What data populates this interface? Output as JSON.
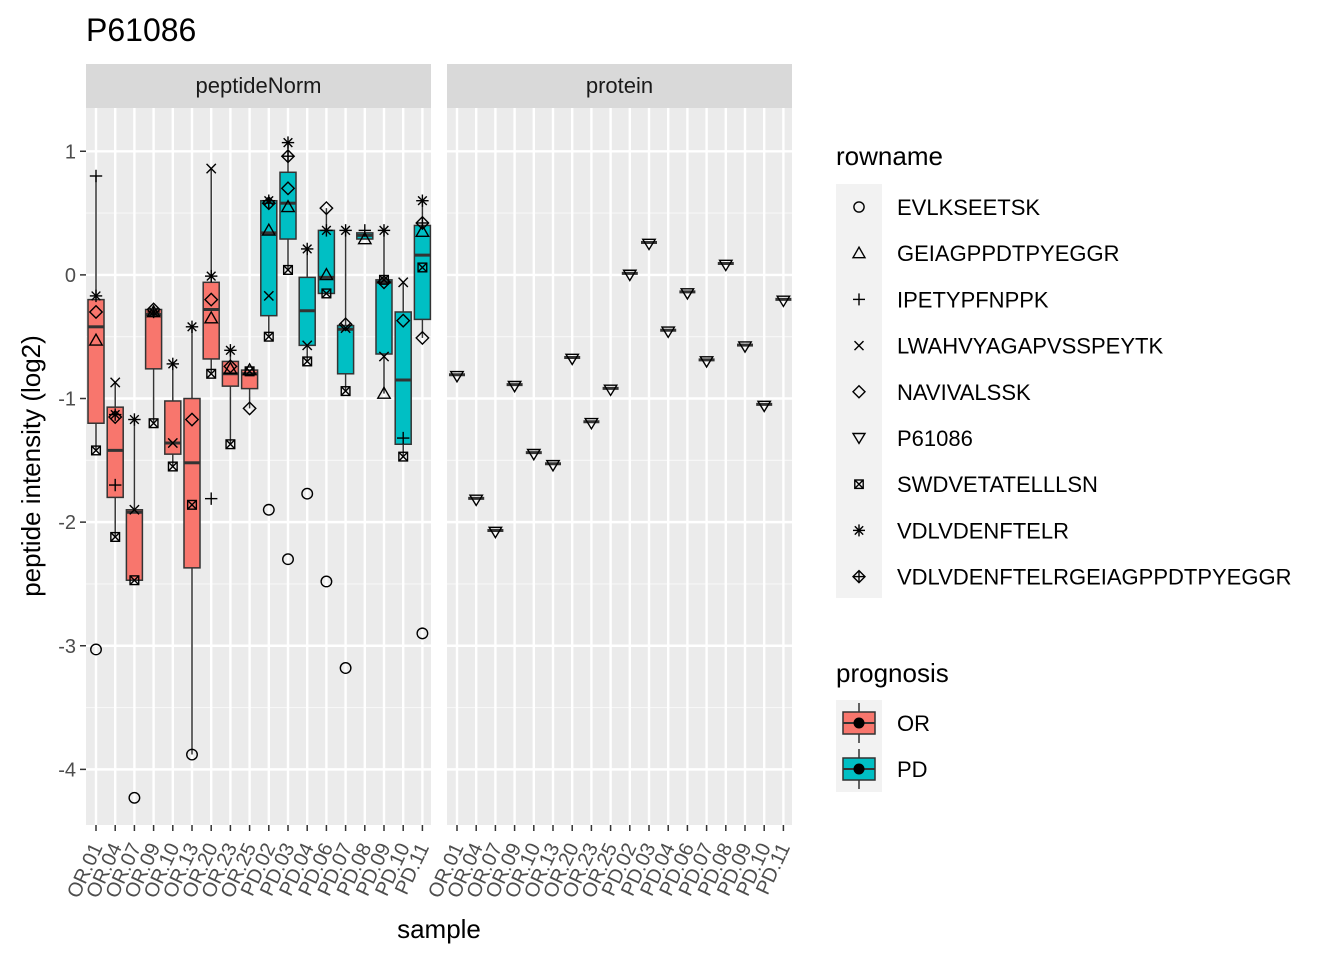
{
  "chart_data": {
    "type": "box",
    "title": "P61086",
    "xlabel": "sample",
    "ylabel": "peptide intensity (log2)",
    "facets": [
      "peptideNorm",
      "protein"
    ],
    "samples": [
      "OR.01",
      "OR.04",
      "OR.07",
      "OR.09",
      "OR.10",
      "OR.13",
      "OR.20",
      "OR.23",
      "OR.25",
      "PD.02",
      "PD.03",
      "PD.04",
      "PD.06",
      "PD.07",
      "PD.08",
      "PD.09",
      "PD.10",
      "PD.11"
    ],
    "prognosis": [
      "OR",
      "OR",
      "OR",
      "OR",
      "OR",
      "OR",
      "OR",
      "OR",
      "OR",
      "PD",
      "PD",
      "PD",
      "PD",
      "PD",
      "PD",
      "PD",
      "PD",
      "PD"
    ],
    "ylim": [
      -4.45,
      1.35
    ],
    "yticks": [
      1,
      0,
      -1,
      -2,
      -3,
      -4
    ],
    "legends": {
      "rowname": {
        "title": "rowname",
        "items": [
          {
            "label": "EVLKSEETSK",
            "shape": "circle"
          },
          {
            "label": "GEIAGPPDTPYEGGR",
            "shape": "triangle"
          },
          {
            "label": "IPETYPFNPPK",
            "shape": "plus"
          },
          {
            "label": "LWAHVYAGAPVSSPEYTK",
            "shape": "cross"
          },
          {
            "label": "NAVIVALSSK",
            "shape": "diamond"
          },
          {
            "label": "P61086",
            "shape": "triangle-down"
          },
          {
            "label": "SWDVETATELLLSN",
            "shape": "square-cross"
          },
          {
            "label": "VDLVDENFTELR",
            "shape": "asterisk"
          },
          {
            "label": "VDLVDENFTELRGEIAGPPDTPYEGGR",
            "shape": "diamond-plus"
          }
        ]
      },
      "prognosis": {
        "title": "prognosis",
        "items": [
          {
            "label": "OR",
            "color": "#F8766D"
          },
          {
            "label": "PD",
            "color": "#00BFC4"
          }
        ]
      }
    },
    "peptideNorm": {
      "boxes": [
        {
          "q1": -1.2,
          "med": -0.42,
          "q3": -0.2,
          "lo": -1.42,
          "hi": 0.8
        },
        {
          "q1": -1.8,
          "med": -1.42,
          "q3": -1.07,
          "lo": -2.12,
          "hi": -0.87
        },
        {
          "q1": -2.47,
          "med": -1.92,
          "q3": -1.9,
          "lo": -2.47,
          "hi": -1.17
        },
        {
          "q1": -0.76,
          "med": -0.32,
          "q3": -0.28,
          "lo": -1.2,
          "hi": -0.28
        },
        {
          "q1": -1.45,
          "med": -1.36,
          "q3": -1.02,
          "lo": -1.55,
          "hi": -0.72
        },
        {
          "q1": -2.37,
          "med": -1.52,
          "q3": -1.0,
          "lo": -3.88,
          "hi": -0.42
        },
        {
          "q1": -0.68,
          "med": -0.28,
          "q3": -0.06,
          "lo": -0.8,
          "hi": 0.86
        },
        {
          "q1": -0.9,
          "med": -0.8,
          "q3": -0.7,
          "lo": -1.37,
          "hi": -0.61
        },
        {
          "q1": -0.92,
          "med": -0.8,
          "q3": -0.77,
          "lo": -1.08,
          "hi": -0.77
        },
        {
          "q1": -0.33,
          "med": 0.34,
          "q3": 0.6,
          "lo": -0.5,
          "hi": 0.6
        },
        {
          "q1": 0.29,
          "med": 0.58,
          "q3": 0.83,
          "lo": 0.04,
          "hi": 1.07
        },
        {
          "q1": -0.57,
          "med": -0.29,
          "q3": -0.02,
          "lo": -0.7,
          "hi": 0.21
        },
        {
          "q1": -0.15,
          "med": -0.02,
          "q3": 0.36,
          "lo": -0.15,
          "hi": 0.54
        },
        {
          "q1": -0.8,
          "med": -0.44,
          "q3": -0.41,
          "lo": -0.94,
          "hi": 0.36
        },
        {
          "q1": 0.29,
          "med": 0.32,
          "q3": 0.34,
          "lo": 0.29,
          "hi": 0.36
        },
        {
          "q1": -0.64,
          "med": -0.06,
          "q3": -0.04,
          "lo": -0.96,
          "hi": 0.36
        },
        {
          "q1": -1.37,
          "med": -0.85,
          "q3": -0.3,
          "lo": -1.47,
          "hi": -0.06
        },
        {
          "q1": -0.36,
          "med": 0.16,
          "q3": 0.4,
          "lo": -0.51,
          "hi": 0.6
        }
      ],
      "points": [
        {
          "x": "OR.01",
          "y": -3.03,
          "shape": "circle"
        },
        {
          "x": "OR.01",
          "y": -0.53,
          "shape": "triangle"
        },
        {
          "x": "OR.01",
          "y": 0.8,
          "shape": "plus"
        },
        {
          "x": "OR.01",
          "y": -0.3,
          "shape": "diamond"
        },
        {
          "x": "OR.01",
          "y": -1.42,
          "shape": "square-cross"
        },
        {
          "x": "OR.01",
          "y": -0.17,
          "shape": "asterisk"
        },
        {
          "x": "OR.04",
          "y": -1.7,
          "shape": "plus"
        },
        {
          "x": "OR.04",
          "y": -0.87,
          "shape": "cross"
        },
        {
          "x": "OR.04",
          "y": -1.15,
          "shape": "diamond"
        },
        {
          "x": "OR.04",
          "y": -2.12,
          "shape": "square-cross"
        },
        {
          "x": "OR.04",
          "y": -1.13,
          "shape": "asterisk"
        },
        {
          "x": "OR.07",
          "y": -4.23,
          "shape": "circle"
        },
        {
          "x": "OR.07",
          "y": -1.9,
          "shape": "cross"
        },
        {
          "x": "OR.07",
          "y": -2.47,
          "shape": "square-cross"
        },
        {
          "x": "OR.07",
          "y": -1.17,
          "shape": "asterisk"
        },
        {
          "x": "OR.09",
          "y": -0.3,
          "shape": "triangle"
        },
        {
          "x": "OR.09",
          "y": -0.28,
          "shape": "diamond"
        },
        {
          "x": "OR.09",
          "y": -1.2,
          "shape": "square-cross"
        },
        {
          "x": "OR.09",
          "y": -0.3,
          "shape": "asterisk"
        },
        {
          "x": "OR.10",
          "y": -1.36,
          "shape": "cross"
        },
        {
          "x": "OR.10",
          "y": -1.55,
          "shape": "square-cross"
        },
        {
          "x": "OR.10",
          "y": -0.72,
          "shape": "asterisk"
        },
        {
          "x": "OR.13",
          "y": -3.88,
          "shape": "circle"
        },
        {
          "x": "OR.13",
          "y": -1.17,
          "shape": "diamond"
        },
        {
          "x": "OR.13",
          "y": -1.86,
          "shape": "square-cross"
        },
        {
          "x": "OR.13",
          "y": -0.42,
          "shape": "asterisk"
        },
        {
          "x": "OR.20",
          "y": -0.35,
          "shape": "triangle"
        },
        {
          "x": "OR.20",
          "y": -1.81,
          "shape": "plus"
        },
        {
          "x": "OR.20",
          "y": 0.86,
          "shape": "cross"
        },
        {
          "x": "OR.20",
          "y": -0.2,
          "shape": "diamond"
        },
        {
          "x": "OR.20",
          "y": -0.8,
          "shape": "square-cross"
        },
        {
          "x": "OR.20",
          "y": -0.01,
          "shape": "asterisk"
        },
        {
          "x": "OR.23",
          "y": -0.76,
          "shape": "triangle"
        },
        {
          "x": "OR.23",
          "y": -0.74,
          "shape": "diamond"
        },
        {
          "x": "OR.23",
          "y": -1.37,
          "shape": "square-cross"
        },
        {
          "x": "OR.23",
          "y": -0.61,
          "shape": "asterisk"
        },
        {
          "x": "OR.25",
          "y": -0.77,
          "shape": "triangle"
        },
        {
          "x": "OR.25",
          "y": -1.08,
          "shape": "diamond"
        },
        {
          "x": "OR.25",
          "y": -0.78,
          "shape": "square-cross"
        },
        {
          "x": "PD.02",
          "y": -1.9,
          "shape": "circle"
        },
        {
          "x": "PD.02",
          "y": 0.36,
          "shape": "triangle"
        },
        {
          "x": "PD.02",
          "y": -0.17,
          "shape": "cross"
        },
        {
          "x": "PD.02",
          "y": -0.5,
          "shape": "square-cross"
        },
        {
          "x": "PD.02",
          "y": 0.6,
          "shape": "asterisk"
        },
        {
          "x": "PD.02",
          "y": 0.58,
          "shape": "diamond-plus"
        },
        {
          "x": "PD.03",
          "y": -2.3,
          "shape": "circle"
        },
        {
          "x": "PD.03",
          "y": 0.55,
          "shape": "triangle"
        },
        {
          "x": "PD.03",
          "y": 0.7,
          "shape": "diamond"
        },
        {
          "x": "PD.03",
          "y": 0.04,
          "shape": "square-cross"
        },
        {
          "x": "PD.03",
          "y": 1.07,
          "shape": "asterisk"
        },
        {
          "x": "PD.03",
          "y": 0.96,
          "shape": "diamond-plus"
        },
        {
          "x": "PD.04",
          "y": -1.77,
          "shape": "circle"
        },
        {
          "x": "PD.04",
          "y": -0.57,
          "shape": "cross"
        },
        {
          "x": "PD.04",
          "y": -0.7,
          "shape": "square-cross"
        },
        {
          "x": "PD.04",
          "y": 0.21,
          "shape": "asterisk"
        },
        {
          "x": "PD.06",
          "y": -2.48,
          "shape": "circle"
        },
        {
          "x": "PD.06",
          "y": 0.0,
          "shape": "triangle"
        },
        {
          "x": "PD.06",
          "y": 0.54,
          "shape": "diamond"
        },
        {
          "x": "PD.06",
          "y": -0.15,
          "shape": "square-cross"
        },
        {
          "x": "PD.06",
          "y": 0.36,
          "shape": "asterisk"
        },
        {
          "x": "PD.07",
          "y": -3.18,
          "shape": "circle"
        },
        {
          "x": "PD.07",
          "y": -0.43,
          "shape": "cross"
        },
        {
          "x": "PD.07",
          "y": -0.4,
          "shape": "diamond"
        },
        {
          "x": "PD.07",
          "y": -0.94,
          "shape": "square-cross"
        },
        {
          "x": "PD.07",
          "y": 0.36,
          "shape": "asterisk"
        },
        {
          "x": "PD.08",
          "y": 0.29,
          "shape": "triangle"
        },
        {
          "x": "PD.08",
          "y": 0.36,
          "shape": "plus"
        },
        {
          "x": "PD.09",
          "y": -0.96,
          "shape": "triangle"
        },
        {
          "x": "PD.09",
          "y": -0.66,
          "shape": "cross"
        },
        {
          "x": "PD.09",
          "y": -0.06,
          "shape": "diamond"
        },
        {
          "x": "PD.09",
          "y": -0.04,
          "shape": "square-cross"
        },
        {
          "x": "PD.09",
          "y": 0.36,
          "shape": "asterisk"
        },
        {
          "x": "PD.10",
          "y": -1.32,
          "shape": "plus"
        },
        {
          "x": "PD.10",
          "y": -0.06,
          "shape": "cross"
        },
        {
          "x": "PD.10",
          "y": -0.37,
          "shape": "diamond"
        },
        {
          "x": "PD.10",
          "y": -1.47,
          "shape": "square-cross"
        },
        {
          "x": "PD.11",
          "y": -2.9,
          "shape": "circle"
        },
        {
          "x": "PD.11",
          "y": 0.35,
          "shape": "triangle"
        },
        {
          "x": "PD.11",
          "y": -0.51,
          "shape": "diamond"
        },
        {
          "x": "PD.11",
          "y": 0.06,
          "shape": "square-cross"
        },
        {
          "x": "PD.11",
          "y": 0.6,
          "shape": "asterisk"
        },
        {
          "x": "PD.11",
          "y": 0.42,
          "shape": "diamond-plus"
        }
      ]
    },
    "protein": {
      "values": [
        -0.82,
        -1.82,
        -2.08,
        -0.9,
        -1.45,
        -1.54,
        -0.68,
        -1.2,
        -0.93,
        0.0,
        0.25,
        -0.46,
        -0.15,
        -0.7,
        0.08,
        -0.58,
        -1.06,
        -0.21
      ],
      "shape": "triangle-down"
    }
  }
}
